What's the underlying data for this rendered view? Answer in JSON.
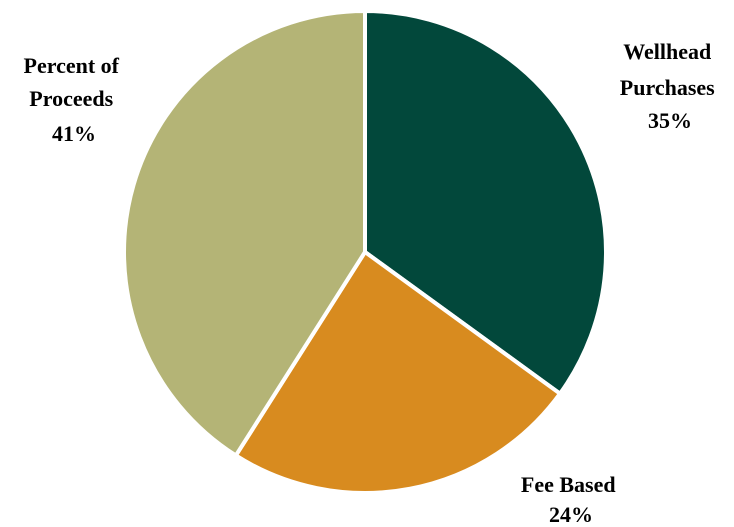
{
  "chart_data": {
    "type": "pie",
    "title": "",
    "slices": [
      {
        "label_lines": [
          "Wellhead",
          "Purchases"
        ],
        "percent_label": "35%",
        "value": 35,
        "color": "#02483b"
      },
      {
        "label_lines": [
          "Fee Based"
        ],
        "percent_label": "24%",
        "value": 24,
        "color": "#d88b1f"
      },
      {
        "label_lines": [
          "Percent of",
          "Proceeds"
        ],
        "percent_label": "41%",
        "value": 41,
        "color": "#b4b476"
      }
    ],
    "start_angle_deg": 0,
    "direction": "clockwise",
    "legend": "none",
    "slice_border_color": "#ffffff"
  }
}
